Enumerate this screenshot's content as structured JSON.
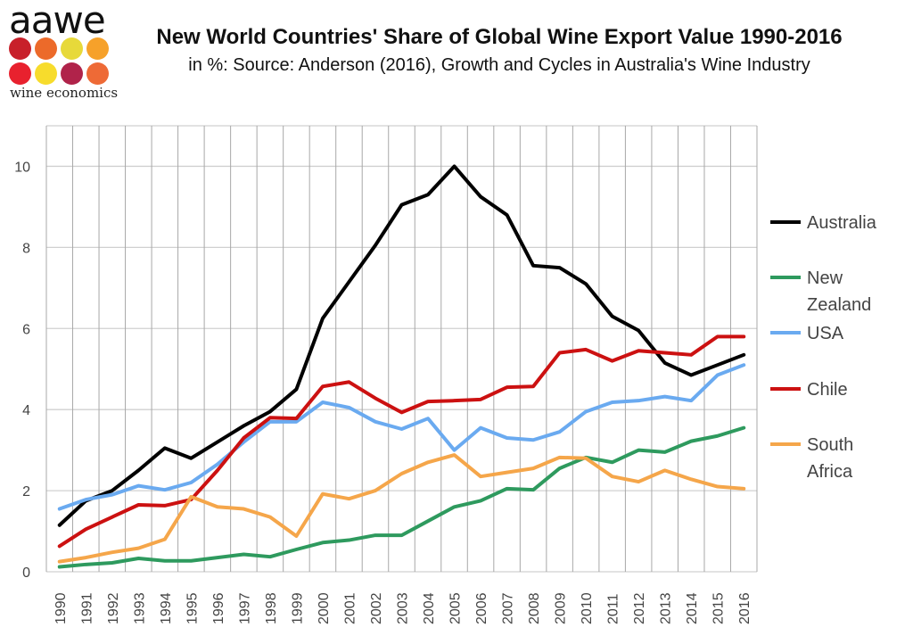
{
  "logo": {
    "wordmark": "aawe",
    "tagline": "wine economics",
    "dot_colors": [
      "#c8202a",
      "#ec6a2a",
      "#e7d93a",
      "#f6a12a",
      "#e8212e",
      "#f7dc2c",
      "#b0234a",
      "#ee6a36"
    ]
  },
  "chart_data": {
    "type": "line",
    "title": "New World Countries' Share of Global Wine Export Value 1990-2016",
    "subtitle": "in %: Source: Anderson (2016), Growth and Cycles in Australia's Wine Industry",
    "xlabel": "",
    "ylabel": "",
    "ylim": [
      0,
      11
    ],
    "yticks": [
      0,
      2,
      4,
      6,
      8,
      10
    ],
    "grid": true,
    "legend_position": "right",
    "categories": [
      "1990",
      "1991",
      "1992",
      "1993",
      "1994",
      "1995",
      "1996",
      "1997",
      "1998",
      "1999",
      "2000",
      "2001",
      "2002",
      "2003",
      "2004",
      "2005",
      "2006",
      "2007",
      "2008",
      "2009",
      "2010",
      "2011",
      "2012",
      "2013",
      "2014",
      "2015",
      "2016"
    ],
    "series": [
      {
        "name": "Australia",
        "color": "#000000",
        "values": [
          1.15,
          1.75,
          2.0,
          2.5,
          3.05,
          2.8,
          3.2,
          3.6,
          3.95,
          4.5,
          6.25,
          7.15,
          8.05,
          9.05,
          9.3,
          10.0,
          9.25,
          8.8,
          7.55,
          7.5,
          7.1,
          6.3,
          5.95,
          5.15,
          4.85,
          5.1,
          5.35
        ]
      },
      {
        "name": "New Zealand",
        "color": "#2e9a5e",
        "values": [
          0.12,
          0.18,
          0.22,
          0.33,
          0.27,
          0.27,
          0.35,
          0.43,
          0.37,
          0.55,
          0.72,
          0.78,
          0.9,
          0.9,
          1.25,
          1.6,
          1.75,
          2.05,
          2.02,
          2.55,
          2.82,
          2.7,
          3.0,
          2.95,
          3.22,
          3.35,
          3.55
        ]
      },
      {
        "name": "USA",
        "color": "#6aaaf0",
        "values": [
          1.55,
          1.78,
          1.9,
          2.12,
          2.02,
          2.2,
          2.65,
          3.2,
          3.7,
          3.7,
          4.18,
          4.05,
          3.7,
          3.52,
          3.78,
          3.0,
          3.55,
          3.3,
          3.25,
          3.45,
          3.95,
          4.18,
          4.22,
          4.32,
          4.22,
          4.85,
          5.1
        ]
      },
      {
        "name": "Chile",
        "color": "#cc1111",
        "values": [
          0.63,
          1.05,
          1.35,
          1.65,
          1.63,
          1.78,
          2.5,
          3.3,
          3.8,
          3.78,
          4.57,
          4.68,
          4.28,
          3.93,
          4.2,
          4.22,
          4.25,
          4.55,
          4.57,
          5.4,
          5.48,
          5.2,
          5.45,
          5.4,
          5.35,
          5.8,
          5.8
        ]
      },
      {
        "name": "South Africa",
        "color": "#f5a64a",
        "values": [
          0.25,
          0.35,
          0.48,
          0.58,
          0.8,
          1.85,
          1.6,
          1.55,
          1.35,
          0.88,
          1.92,
          1.8,
          2.0,
          2.42,
          2.7,
          2.88,
          2.35,
          2.45,
          2.55,
          2.82,
          2.8,
          2.35,
          2.22,
          2.5,
          2.28,
          2.1,
          2.05
        ]
      }
    ],
    "legend_lines": [
      [
        "Australia"
      ],
      [
        "New",
        "Zealand"
      ],
      [
        "USA"
      ],
      [
        "Chile"
      ],
      [
        "South",
        "Africa"
      ]
    ]
  }
}
